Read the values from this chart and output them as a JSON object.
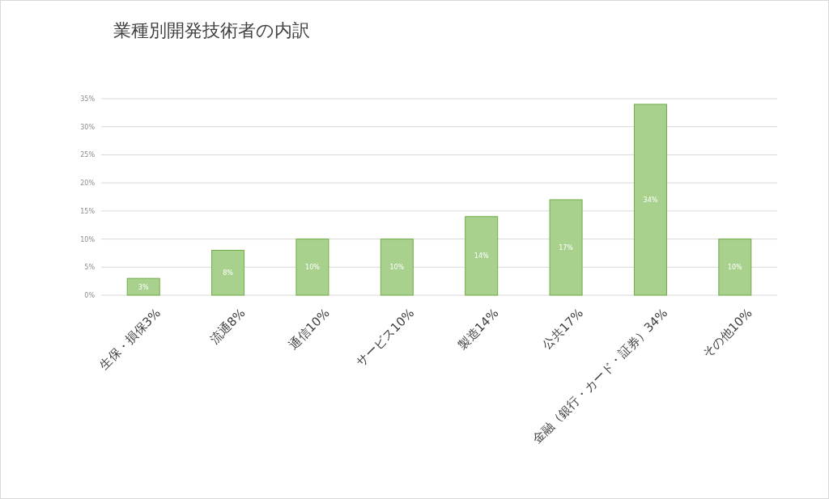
{
  "chart_data": {
    "type": "bar",
    "title": "業種別開発技術者の内訳",
    "categories": [
      "生保・損保3%",
      "流通8%",
      "通信10%",
      "サービス10%",
      "製造14%",
      "公共17%",
      "金融（銀行・カード・証券）34%",
      "その他10%"
    ],
    "values": [
      3,
      8,
      10,
      10,
      14,
      17,
      34,
      10
    ],
    "value_labels": [
      "3%",
      "8%",
      "10%",
      "10%",
      "14%",
      "17%",
      "34%",
      "10%"
    ],
    "color": "#a9d18e",
    "ylim": [
      0,
      35
    ],
    "yticks": [
      {
        "value": 0,
        "label": "0%"
      },
      {
        "value": 5,
        "label": "5%"
      },
      {
        "value": 10,
        "label": "10%"
      },
      {
        "value": 15,
        "label": "15%"
      },
      {
        "value": 20,
        "label": "20%"
      },
      {
        "value": 25,
        "label": "25%"
      },
      {
        "value": 30,
        "label": "30%"
      },
      {
        "value": 35,
        "label": "35%"
      }
    ],
    "grid": "y"
  }
}
